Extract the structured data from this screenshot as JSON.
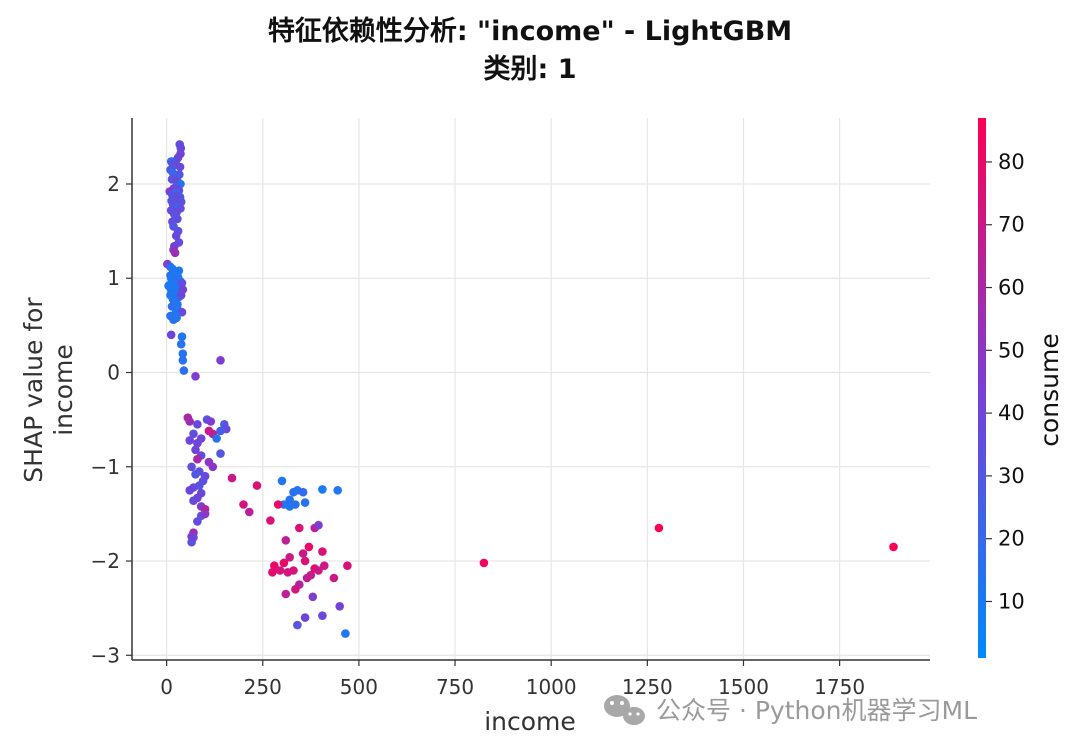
{
  "title_line1": "特征依赖性分析: \"income\" - LightGBM",
  "title_line2": "类别: 1",
  "watermark": "公众号 · Python机器学习ML",
  "chart_data": {
    "type": "scatter",
    "xlabel": "income",
    "ylabel_lines": [
      "SHAP value for",
      "income"
    ],
    "xlim": [
      -90,
      1985
    ],
    "ylim": [
      -3.05,
      2.7
    ],
    "xticks": [
      0,
      250,
      500,
      750,
      1000,
      1250,
      1500,
      1750
    ],
    "yticks": [
      -3,
      -2,
      -1,
      0,
      1,
      2
    ],
    "xtick_labels": [
      "0",
      "250",
      "500",
      "750",
      "1000",
      "1250",
      "1500",
      "1750"
    ],
    "ytick_labels": [
      "−3",
      "−2",
      "−1",
      "0",
      "1",
      "2"
    ],
    "grid": true,
    "colorbar": {
      "label": "consume",
      "range": [
        1,
        87
      ],
      "ticks": [
        10,
        20,
        30,
        40,
        50,
        60,
        70,
        80
      ],
      "tick_labels": [
        "10",
        "20",
        "30",
        "40",
        "50",
        "60",
        "70",
        "80"
      ],
      "colors": [
        "#008afb",
        "#ff0052"
      ]
    },
    "points": [
      [
        34,
        2.42,
        35
      ],
      [
        37,
        2.38,
        38
      ],
      [
        36,
        2.32,
        40
      ],
      [
        30,
        2.28,
        42
      ],
      [
        25,
        2.25,
        36
      ],
      [
        12,
        2.24,
        15
      ],
      [
        15,
        2.22,
        32
      ],
      [
        20,
        2.2,
        34
      ],
      [
        35,
        2.18,
        38
      ],
      [
        10,
        2.15,
        30
      ],
      [
        16,
        2.12,
        20
      ],
      [
        33,
        2.1,
        30
      ],
      [
        22,
        2.08,
        25
      ],
      [
        14,
        2.05,
        33
      ],
      [
        28,
        2.03,
        36
      ],
      [
        36,
        2.0,
        12
      ],
      [
        26,
        1.98,
        28
      ],
      [
        18,
        1.95,
        40
      ],
      [
        32,
        1.93,
        36
      ],
      [
        8,
        1.92,
        45
      ],
      [
        24,
        1.9,
        14
      ],
      [
        15,
        1.88,
        30
      ],
      [
        30,
        1.87,
        35
      ],
      [
        35,
        1.86,
        28
      ],
      [
        20,
        1.85,
        32
      ],
      [
        26,
        1.84,
        36
      ],
      [
        13,
        1.82,
        30
      ],
      [
        38,
        1.81,
        34
      ],
      [
        22,
        1.8,
        38
      ],
      [
        17,
        1.78,
        32
      ],
      [
        29,
        1.77,
        36
      ],
      [
        24,
        1.76,
        30
      ],
      [
        32,
        1.75,
        15
      ],
      [
        36,
        1.74,
        35
      ],
      [
        12,
        1.72,
        35
      ],
      [
        26,
        1.7,
        40
      ],
      [
        20,
        1.68,
        36
      ],
      [
        23,
        1.66,
        32
      ],
      [
        28,
        1.63,
        34
      ],
      [
        15,
        1.6,
        36
      ],
      [
        18,
        1.55,
        30
      ],
      [
        30,
        1.5,
        32
      ],
      [
        25,
        1.45,
        38
      ],
      [
        32,
        1.38,
        36
      ],
      [
        20,
        1.34,
        40
      ],
      [
        18,
        1.3,
        48
      ],
      [
        22,
        1.27,
        55
      ],
      [
        2,
        1.15,
        45
      ],
      [
        10,
        1.12,
        20
      ],
      [
        15,
        1.1,
        12
      ],
      [
        32,
        1.08,
        10
      ],
      [
        20,
        1.07,
        14
      ],
      [
        25,
        1.05,
        10
      ],
      [
        10,
        1.03,
        16
      ],
      [
        18,
        1.02,
        12
      ],
      [
        30,
        1.01,
        14
      ],
      [
        12,
        1.0,
        10
      ],
      [
        26,
        0.99,
        12
      ],
      [
        20,
        0.98,
        18
      ],
      [
        35,
        0.97,
        10
      ],
      [
        14,
        0.96,
        12
      ],
      [
        28,
        0.95,
        14
      ],
      [
        22,
        0.94,
        12
      ],
      [
        8,
        0.93,
        10
      ],
      [
        5,
        0.92,
        12
      ],
      [
        16,
        0.91,
        10
      ],
      [
        24,
        0.9,
        12
      ],
      [
        30,
        0.89,
        14
      ],
      [
        12,
        0.88,
        10
      ],
      [
        20,
        0.87,
        12
      ],
      [
        18,
        0.86,
        10
      ],
      [
        26,
        0.85,
        12
      ],
      [
        14,
        0.84,
        16
      ],
      [
        22,
        0.83,
        10
      ],
      [
        10,
        0.82,
        12
      ],
      [
        32,
        0.8,
        14
      ],
      [
        16,
        0.78,
        12
      ],
      [
        24,
        0.76,
        10
      ],
      [
        20,
        0.74,
        12
      ],
      [
        40,
        0.95,
        35
      ],
      [
        42,
        0.88,
        40
      ],
      [
        38,
        0.82,
        38
      ],
      [
        28,
        0.72,
        14
      ],
      [
        14,
        0.7,
        20
      ],
      [
        24,
        0.68,
        12
      ],
      [
        30,
        0.66,
        14
      ],
      [
        40,
        0.64,
        38
      ],
      [
        22,
        0.62,
        12
      ],
      [
        10,
        0.6,
        14
      ],
      [
        26,
        0.58,
        12
      ],
      [
        18,
        0.56,
        15
      ],
      [
        40,
        0.38,
        12
      ],
      [
        38,
        0.3,
        14
      ],
      [
        42,
        0.2,
        14
      ],
      [
        42,
        0.13,
        15
      ],
      [
        45,
        0.02,
        16
      ],
      [
        140,
        0.13,
        45
      ],
      [
        12,
        0.4,
        40
      ],
      [
        75,
        -0.04,
        45
      ],
      [
        55,
        -0.48,
        60
      ],
      [
        60,
        -0.52,
        55
      ],
      [
        80,
        -0.55,
        38
      ],
      [
        105,
        -0.5,
        35
      ],
      [
        115,
        -0.52,
        45
      ],
      [
        150,
        -0.55,
        30
      ],
      [
        155,
        -0.6,
        38
      ],
      [
        140,
        -0.62,
        25
      ],
      [
        70,
        -0.65,
        35
      ],
      [
        110,
        -0.62,
        70
      ],
      [
        120,
        -0.65,
        65
      ],
      [
        90,
        -0.7,
        42
      ],
      [
        130,
        -0.7,
        15
      ],
      [
        60,
        -0.72,
        40
      ],
      [
        80,
        -0.75,
        40
      ],
      [
        75,
        -0.82,
        40
      ],
      [
        90,
        -0.88,
        38
      ],
      [
        140,
        -0.86,
        30
      ],
      [
        80,
        -0.92,
        60
      ],
      [
        110,
        -0.95,
        50
      ],
      [
        65,
        -1.0,
        35
      ],
      [
        120,
        -1.0,
        50
      ],
      [
        85,
        -1.05,
        35
      ],
      [
        75,
        -1.08,
        30
      ],
      [
        100,
        -1.1,
        38
      ],
      [
        95,
        -1.15,
        35
      ],
      [
        85,
        -1.2,
        32
      ],
      [
        70,
        -1.22,
        36
      ],
      [
        60,
        -1.25,
        40
      ],
      [
        90,
        -1.28,
        38
      ],
      [
        80,
        -1.33,
        40
      ],
      [
        70,
        -1.36,
        38
      ],
      [
        90,
        -1.42,
        45
      ],
      [
        100,
        -1.45,
        62
      ],
      [
        90,
        -1.52,
        32
      ],
      [
        100,
        -1.5,
        50
      ],
      [
        80,
        -1.58,
        38
      ],
      [
        70,
        -1.7,
        55
      ],
      [
        65,
        -1.74,
        48
      ],
      [
        65,
        -1.8,
        32
      ],
      [
        70,
        -1.75,
        40
      ],
      [
        170,
        -1.12,
        70
      ],
      [
        235,
        -1.2,
        75
      ],
      [
        200,
        -1.4,
        72
      ],
      [
        215,
        -1.48,
        65
      ],
      [
        300,
        -1.15,
        12
      ],
      [
        305,
        -1.4,
        12
      ],
      [
        320,
        -1.42,
        12
      ],
      [
        330,
        -1.27,
        16
      ],
      [
        340,
        -1.25,
        14
      ],
      [
        355,
        -1.27,
        18
      ],
      [
        320,
        -1.35,
        14
      ],
      [
        335,
        -1.4,
        16
      ],
      [
        360,
        -1.38,
        14
      ],
      [
        405,
        -1.24,
        10
      ],
      [
        445,
        -1.25,
        12
      ],
      [
        290,
        -1.4,
        80
      ],
      [
        270,
        -1.57,
        75
      ],
      [
        310,
        -1.78,
        65
      ],
      [
        345,
        -1.65,
        75
      ],
      [
        385,
        -1.65,
        65
      ],
      [
        395,
        -1.62,
        45
      ],
      [
        280,
        -2.05,
        80
      ],
      [
        275,
        -2.12,
        78
      ],
      [
        295,
        -2.1,
        75
      ],
      [
        305,
        -2.02,
        80
      ],
      [
        320,
        -1.96,
        70
      ],
      [
        315,
        -2.12,
        72
      ],
      [
        330,
        -2.1,
        74
      ],
      [
        355,
        -1.92,
        70
      ],
      [
        360,
        -2.0,
        75
      ],
      [
        370,
        -1.85,
        80
      ],
      [
        385,
        -2.08,
        78
      ],
      [
        395,
        -2.1,
        70
      ],
      [
        405,
        -1.9,
        75
      ],
      [
        410,
        -2.05,
        70
      ],
      [
        375,
        -2.15,
        68
      ],
      [
        365,
        -2.18,
        66
      ],
      [
        345,
        -2.25,
        62
      ],
      [
        335,
        -2.3,
        72
      ],
      [
        310,
        -2.35,
        65
      ],
      [
        360,
        -2.6,
        40
      ],
      [
        340,
        -2.68,
        32
      ],
      [
        380,
        -2.38,
        45
      ],
      [
        405,
        -2.58,
        38
      ],
      [
        435,
        -2.18,
        70
      ],
      [
        450,
        -2.48,
        42
      ],
      [
        465,
        -2.77,
        12
      ],
      [
        470,
        -2.05,
        75
      ],
      [
        825,
        -2.02,
        82
      ],
      [
        1280,
        -1.65,
        84
      ],
      [
        1890,
        -1.85,
        86
      ]
    ]
  }
}
